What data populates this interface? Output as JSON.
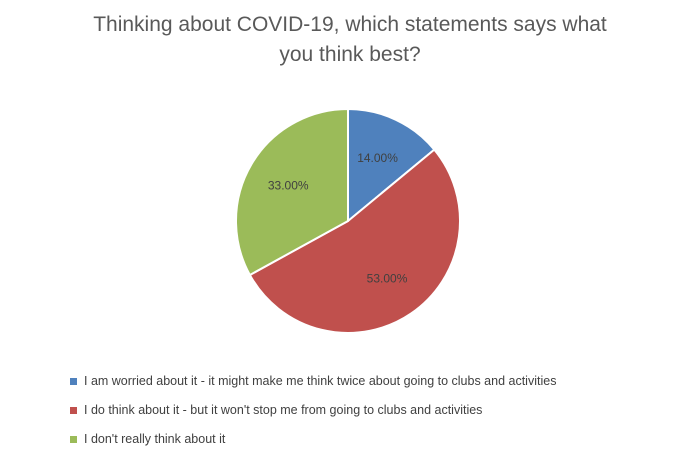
{
  "chart_data": {
    "type": "pie",
    "title": "Thinking about COVID-19, which statements says what you think best?",
    "title_lines": [
      "Thinking about COVID-19, which statements says what",
      "you think best?"
    ],
    "slices": [
      {
        "label": "I am worried about it - it might make me think twice about going to clubs and activities",
        "value": 14.0,
        "display": "14.00%",
        "color": "#4F81BD"
      },
      {
        "label": "I do think about it - but it won't stop me from going to clubs and activities",
        "value": 53.0,
        "display": "53.00%",
        "color": "#C0504D"
      },
      {
        "label": "I don't really think about it",
        "value": 33.0,
        "display": "33.00%",
        "color": "#9BBB59"
      }
    ],
    "legend_position": "bottom"
  }
}
